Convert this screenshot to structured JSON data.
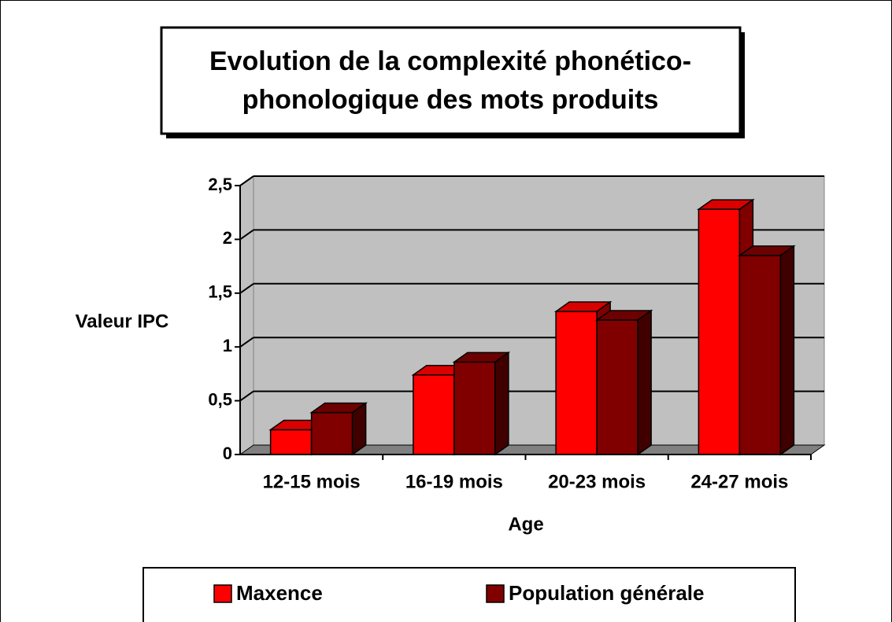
{
  "chart_data": {
    "type": "bar3d",
    "title": [
      "Evolution de la complexité phonético-",
      "phonologique des mots produits"
    ],
    "categories": [
      "12-15 mois",
      "16-19 mois",
      "20-23 mois",
      "24-27 mois"
    ],
    "series": [
      {
        "name": "Maxence",
        "color": "#ff0000",
        "values": [
          0.23,
          0.74,
          1.33,
          2.28
        ]
      },
      {
        "name": "Population générale",
        "color": "#800000",
        "values": [
          0.39,
          0.86,
          1.25,
          1.85
        ]
      }
    ],
    "ylim": [
      0,
      2.5
    ],
    "yticks": [
      0,
      {
        "value": 0.5,
        "label": "0,5"
      },
      1,
      {
        "value": 1.5,
        "label": "1,5"
      },
      2,
      {
        "value": 2.5,
        "label": "2,5"
      }
    ],
    "ylabel": "Valeur IPC",
    "xlabel": "Age",
    "grid": true,
    "legend": "bottom"
  }
}
